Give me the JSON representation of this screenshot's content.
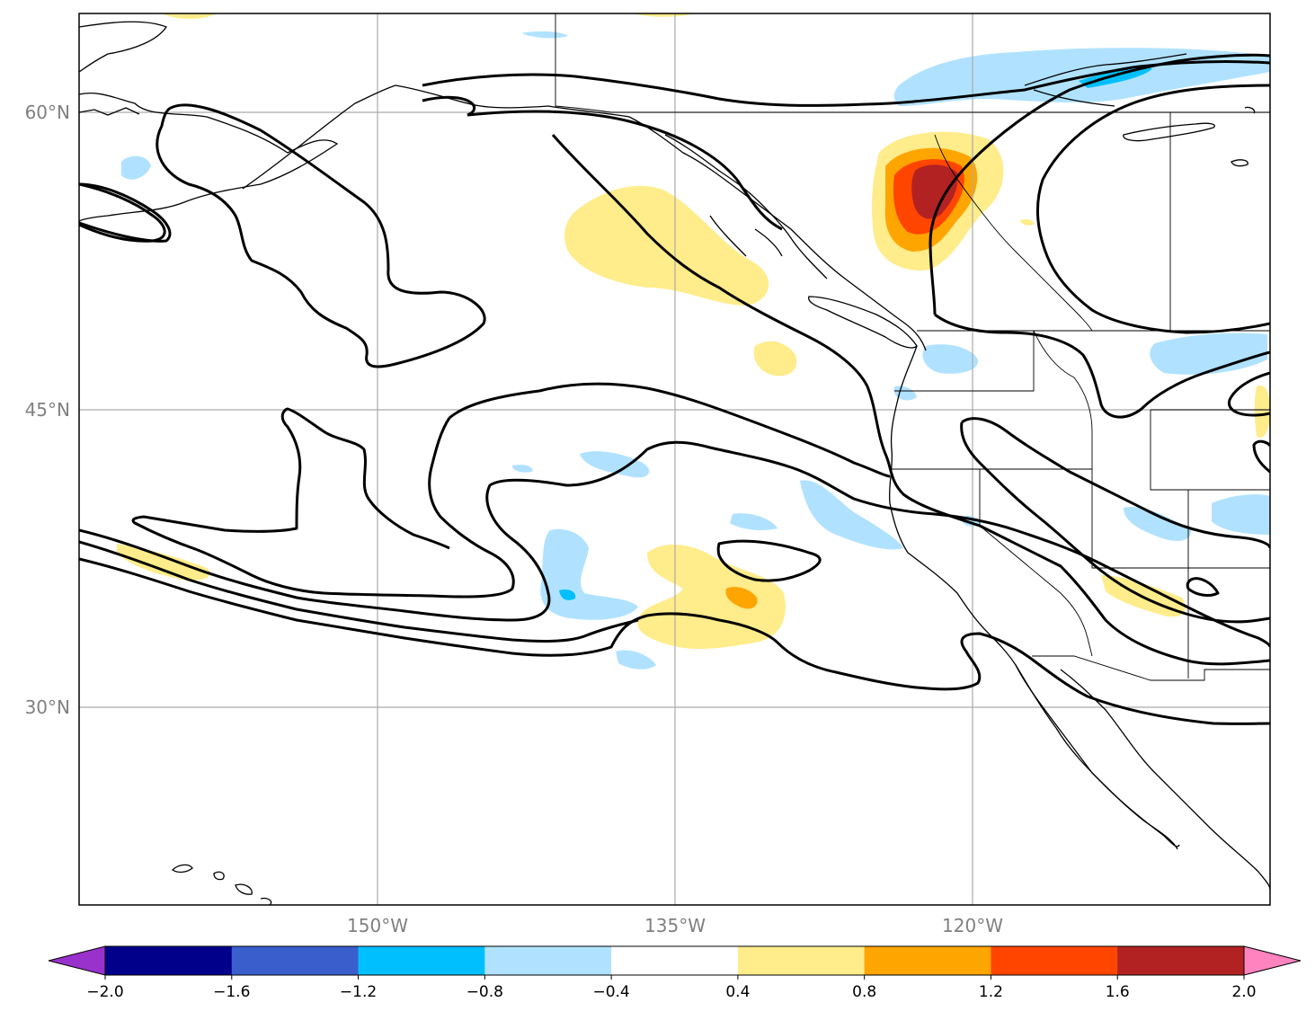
{
  "map": {
    "projection": "PlateCarree",
    "lat_gridlines": [
      "60°N",
      "45°N",
      "30°N"
    ],
    "lon_gridlines": [
      "150°W",
      "135°W",
      "120°W"
    ],
    "colors": {
      "land_outline": "#000000",
      "gridline": "#aaaaaa",
      "axis_label": "#808080"
    },
    "contours": {
      "stroke": "#000000",
      "style": "thick solid, unlabeled"
    }
  },
  "colorbar": {
    "extend": "both",
    "ticks": [
      "−2.0",
      "−1.6",
      "−1.2",
      "−0.8",
      "−0.4",
      "0.4",
      "0.8",
      "1.2",
      "1.6",
      "2.0"
    ],
    "colors": [
      "#00008b",
      "#3a5fcd",
      "#00bfff",
      "#b0e2ff",
      "#ffffff",
      "#ffec8b",
      "#ffa500",
      "#ff4500",
      "#b22222"
    ],
    "under_color": "#9932cc",
    "over_color": "#ff83bf"
  }
}
